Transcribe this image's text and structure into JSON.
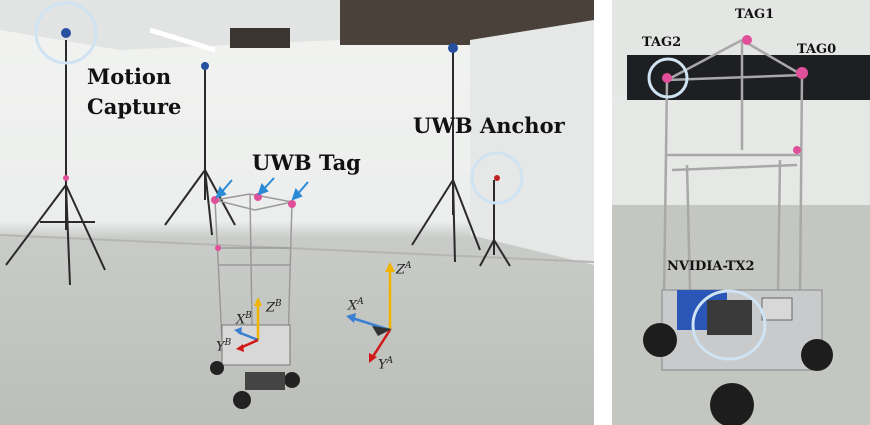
{
  "left_photo": {
    "labels": {
      "motion_capture_line1": "Motion",
      "motion_capture_line2": "Capture",
      "uwb_anchor": "UWB Anchor",
      "uwb_tag": "UWB Tag"
    },
    "axes": {
      "z_a": "Z",
      "x_a": "X",
      "y_a": "Y",
      "frame_a": "A",
      "z_b": "Z",
      "x_b": "X",
      "y_b": "Y",
      "frame_b": "B"
    }
  },
  "right_photo": {
    "labels": {
      "tag0": "TAG0",
      "tag1": "TAG1",
      "tag2": "TAG2",
      "nvidia": "NVIDIA-TX2"
    }
  },
  "colors": {
    "highlight_circle": "#cfe3f2",
    "arrow_blue": "#2b8ad6",
    "axis_yellow": "#f0b400",
    "axis_blue": "#3a7fd0",
    "axis_red": "#d01818",
    "marker_pink": "#e0509a"
  }
}
